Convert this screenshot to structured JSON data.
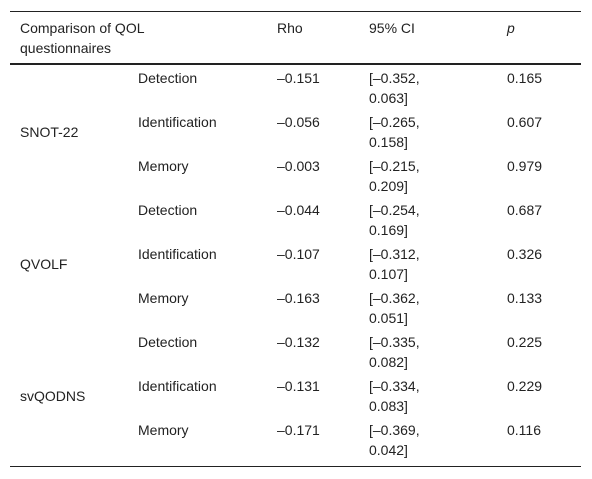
{
  "header": [
    "Comparison of QOL questionnaires",
    "Rho",
    "95% CI",
    "p"
  ],
  "groups": [
    {
      "name": "SNOT-22",
      "rows": [
        [
          "Detection",
          "–0.151",
          "[–0.352, 0.063]",
          "0.165"
        ],
        [
          "Identification",
          "–0.056",
          "[–0.265, 0.158]",
          "0.607"
        ],
        [
          "Memory",
          "–0.003",
          "[–0.215, 0.209]",
          "0.979"
        ]
      ]
    },
    {
      "name": "QVOLF",
      "rows": [
        [
          "Detection",
          "–0.044",
          "[–0.254, 0.169]",
          "0.687"
        ],
        [
          "Identification",
          "–0.107",
          "[–0.312, 0.107]",
          "0.326"
        ],
        [
          "Memory",
          "–0.163",
          "[–0.362, 0.051]",
          "0.133"
        ]
      ]
    },
    {
      "name": "svQODNS",
      "rows": [
        [
          "Detection",
          "–0.132",
          "[–0.335, 0.082]",
          "0.225"
        ],
        [
          "Identification",
          "–0.131",
          "[–0.334, 0.083]",
          "0.229"
        ],
        [
          "Memory",
          "–0.171",
          "[–0.369, 0.042]",
          "0.116"
        ]
      ]
    }
  ]
}
